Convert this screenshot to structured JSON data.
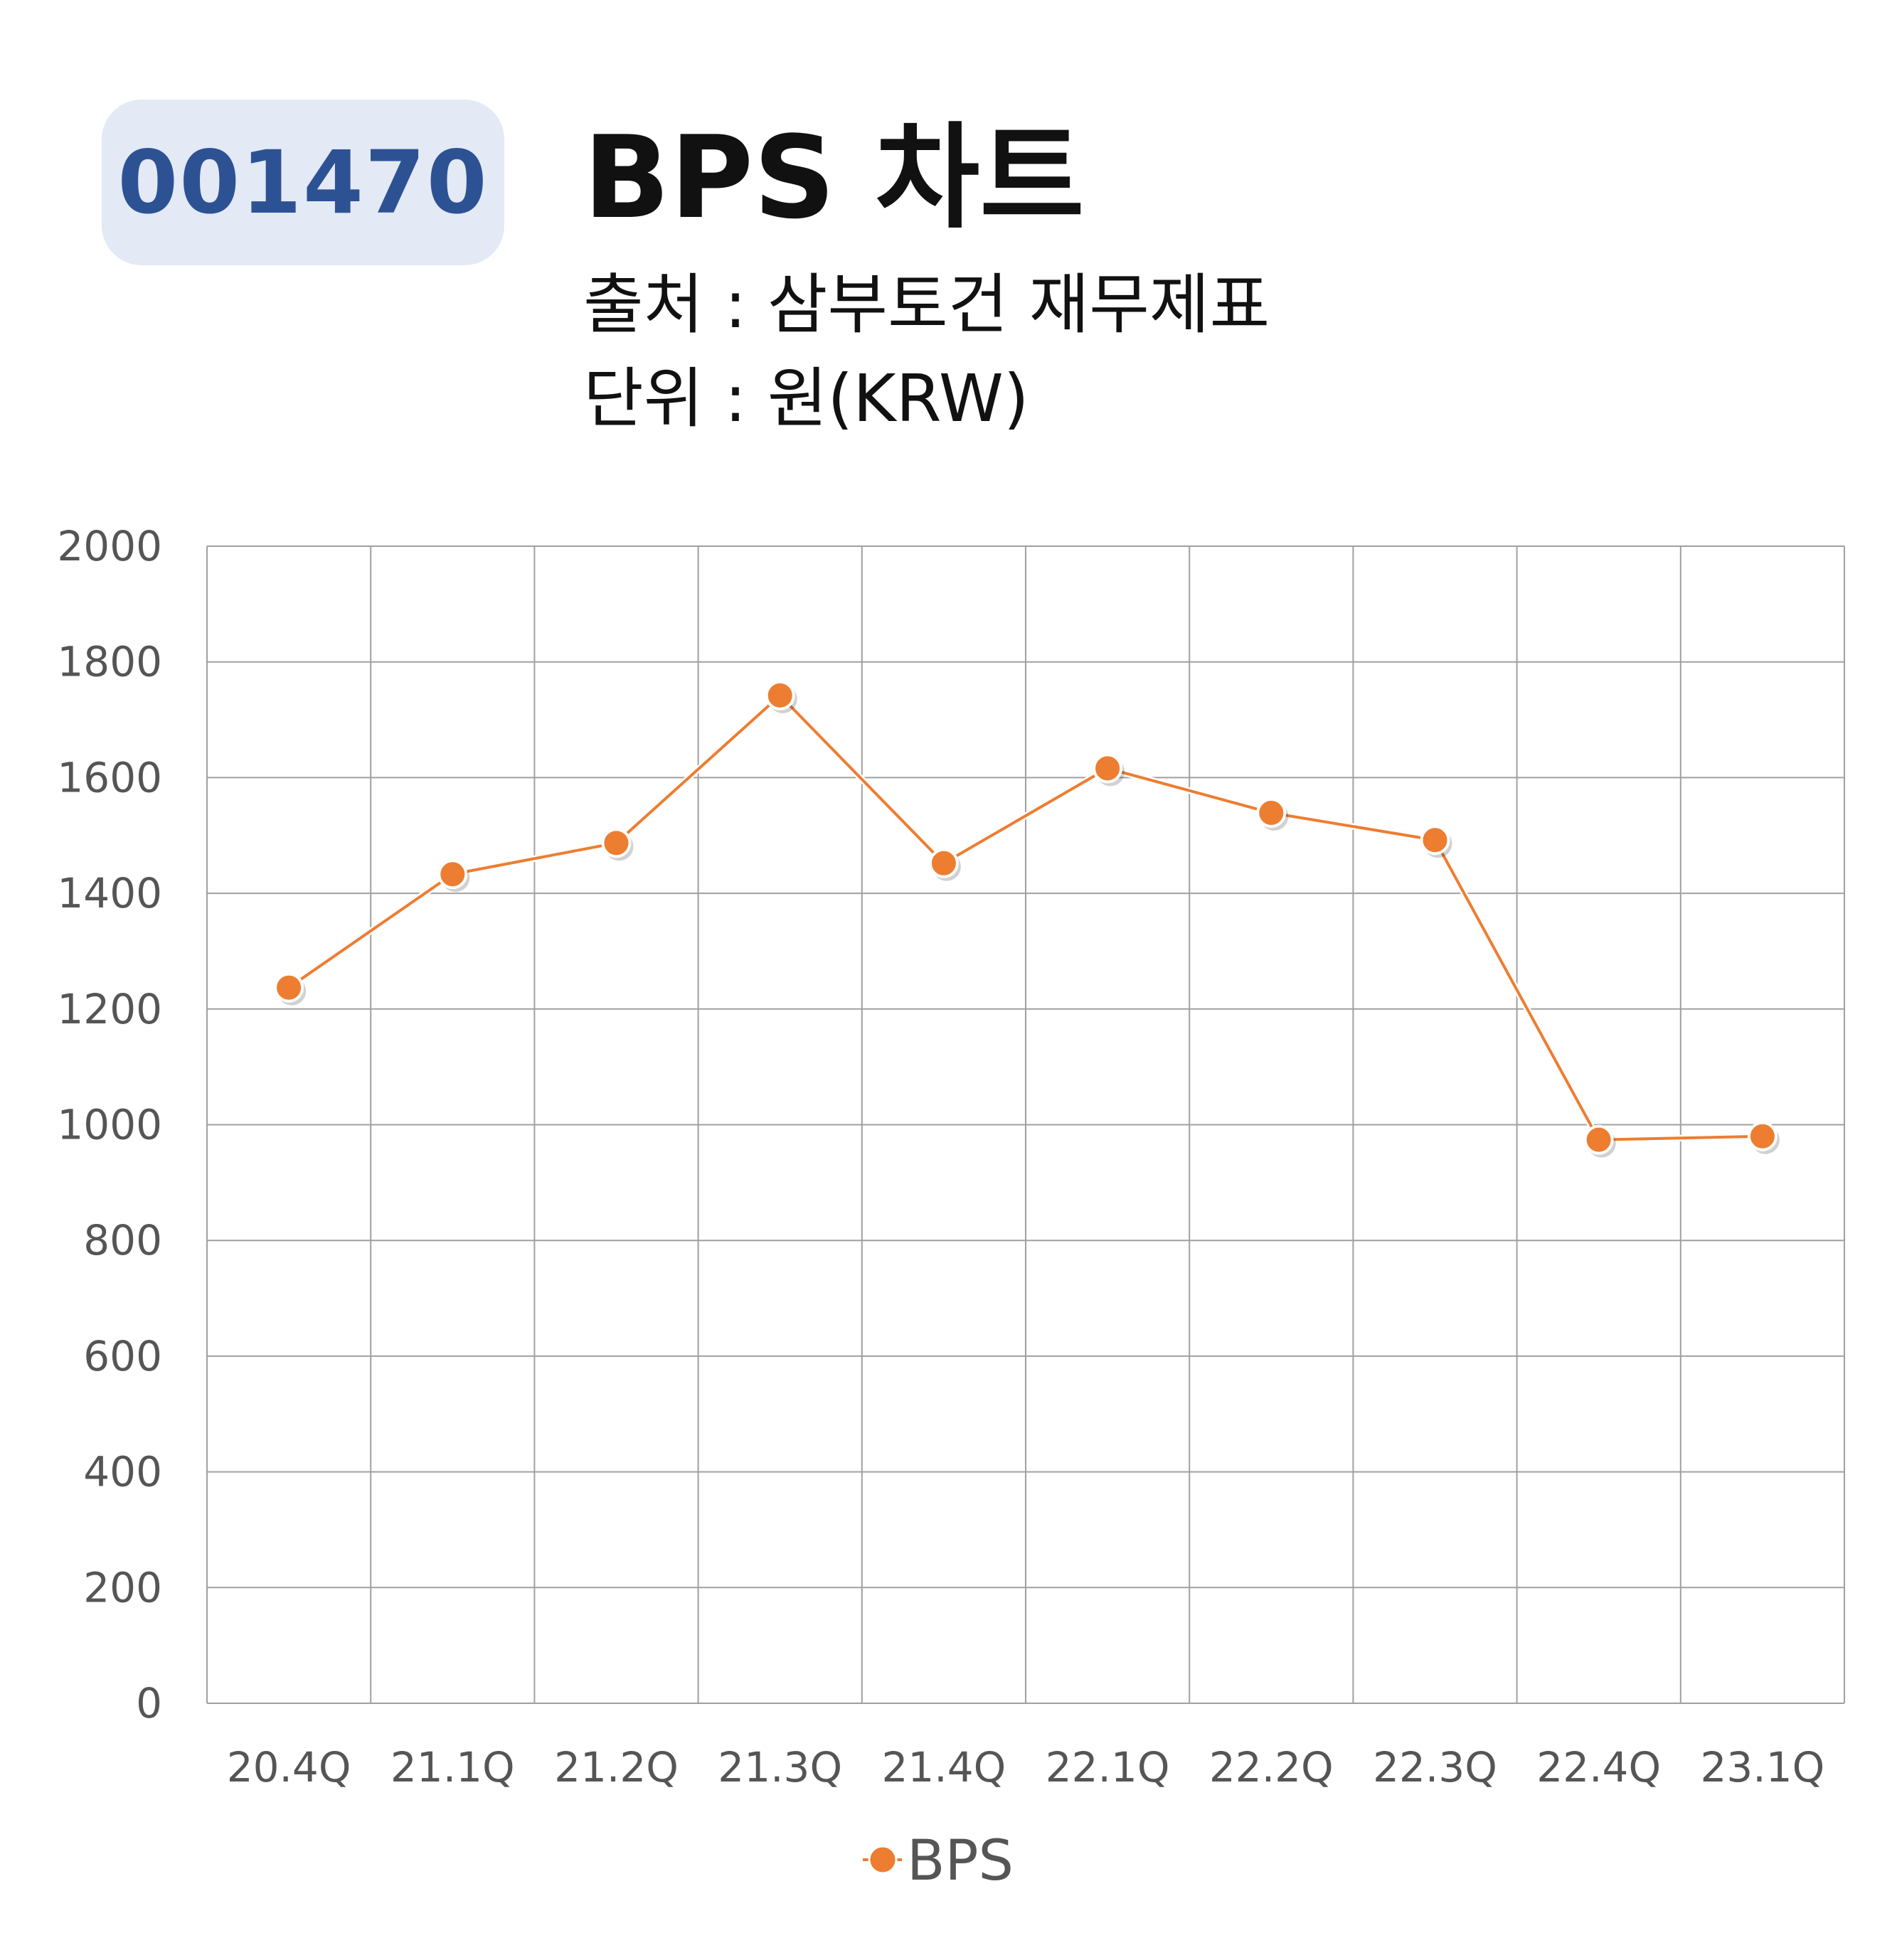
{
  "header": {
    "code": "001470",
    "title": "BPS 차트",
    "source_line": "출처 : 삼부토건 재무제표",
    "unit_line": "단위 : 원(KRW)"
  },
  "colors": {
    "badge_bg": "#e3e9f5",
    "badge_text": "#2d5294",
    "series": "#ed7d31",
    "grid": "#a0a0a0",
    "tick_text": "#555555"
  },
  "chart_data": {
    "type": "line",
    "categories": [
      "20.4Q",
      "21.1Q",
      "21.2Q",
      "21.3Q",
      "21.4Q",
      "22.1Q",
      "22.2Q",
      "22.3Q",
      "22.4Q",
      "23.1Q"
    ],
    "series": [
      {
        "name": "BPS",
        "values": [
          1237,
          1433,
          1487,
          1742,
          1452,
          1616,
          1539,
          1492,
          974,
          980
        ]
      }
    ],
    "y_ticks": [
      "0",
      "200",
      "400",
      "600",
      "800",
      "1000",
      "1200",
      "1400",
      "1600",
      "1800",
      "2000"
    ],
    "ylim": [
      0,
      2000
    ],
    "grid": true,
    "legend_position": "bottom"
  }
}
